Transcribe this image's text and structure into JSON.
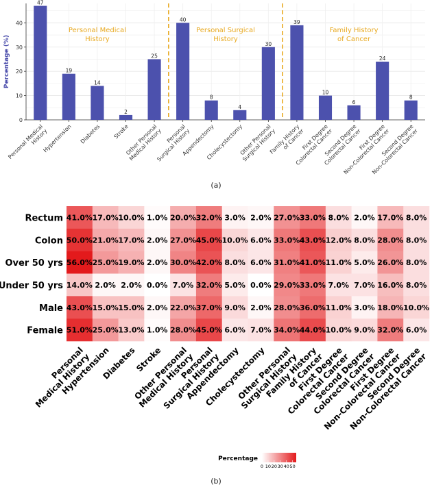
{
  "chart_data": [
    {
      "type": "bar",
      "ylabel": "Percentage (%)",
      "ylim": [
        0,
        48
      ],
      "yticks": [
        0,
        10,
        20,
        30,
        40
      ],
      "grid": true,
      "bar_color": "#4c51ad",
      "categories": [
        [
          "Personal Medical",
          "History"
        ],
        [
          "Hypertension"
        ],
        [
          "Diabetes"
        ],
        [
          "Stroke"
        ],
        [
          "Other Personal",
          "Medical History"
        ],
        [
          "Personal",
          "Surgical History"
        ],
        [
          "Appendectomy"
        ],
        [
          "Cholecystectomy"
        ],
        [
          "Other Personal",
          "Surgical History"
        ],
        [
          "Family History",
          "of Cancer"
        ],
        [
          "First Degree",
          "Colorectal Cancer"
        ],
        [
          "Second Degree",
          "Colorectal Cancer"
        ],
        [
          "First Degree",
          "Non-Colorectal Cancer"
        ],
        [
          "Second Degree",
          "Non-Colorectal Cancer"
        ]
      ],
      "values": [
        47,
        19,
        14,
        2,
        25,
        40,
        8,
        4,
        30,
        39,
        10,
        6,
        24,
        8
      ],
      "groups": [
        {
          "label": [
            "Personal Medical",
            "History"
          ],
          "start": 0,
          "end": 4
        },
        {
          "label": [
            "Personal Surgical",
            "History"
          ],
          "start": 5,
          "end": 8
        },
        {
          "label": [
            "Family History",
            "of Cancer"
          ],
          "start": 9,
          "end": 13
        }
      ],
      "group_color": "#e8a920",
      "caption": "(a)"
    },
    {
      "type": "heatmap",
      "rows": [
        "Rectum",
        "Colon",
        "Over 50 yrs",
        "Under 50 yrs",
        "Male",
        "Female"
      ],
      "columns": [
        [
          "Personal",
          "Medical History"
        ],
        [
          "Hypertension"
        ],
        [
          "Diabetes"
        ],
        [
          "Stroke"
        ],
        [
          "Other Personal",
          "Medical History"
        ],
        [
          "Personal",
          "Surgical History"
        ],
        [
          "Appendectomy"
        ],
        [
          "Cholecystectomy"
        ],
        [
          "Other Personal",
          "Surgical History"
        ],
        [
          "Family History",
          "of Cancer"
        ],
        [
          "First Degree",
          "Colorectal Cancer"
        ],
        [
          "Second Degree",
          "Colorectal Cancer"
        ],
        [
          "First Degree",
          "Non-Colorectal Cancer"
        ],
        [
          "Second Degree",
          "Non-Colorectal Cancer"
        ]
      ],
      "values": [
        [
          41,
          17,
          10,
          1,
          20,
          32,
          3,
          2,
          27,
          33,
          8,
          2,
          17,
          8
        ],
        [
          50,
          21,
          17,
          2,
          27,
          45,
          10,
          6,
          33,
          43,
          12,
          8,
          28,
          8
        ],
        [
          56,
          25,
          19,
          2,
          30,
          42,
          8,
          6,
          31,
          41,
          11,
          5,
          26,
          8
        ],
        [
          14,
          2,
          2,
          0,
          7,
          32,
          5,
          0,
          29,
          33,
          7,
          7,
          16,
          8
        ],
        [
          43,
          15,
          15,
          2,
          22,
          37,
          9,
          2,
          28,
          36,
          11,
          3,
          18,
          10
        ],
        [
          51,
          25,
          13,
          1,
          28,
          45,
          6,
          7,
          34,
          44,
          10,
          9,
          32,
          6
        ]
      ],
      "color_range": [
        "#ffffff",
        "#e31a1c"
      ],
      "value_range": [
        0,
        56
      ],
      "legend": {
        "title": "Percentage",
        "ticks": [
          0,
          10,
          20,
          30,
          40,
          50
        ],
        "placement": "bottom"
      },
      "caption": "(b)"
    }
  ]
}
